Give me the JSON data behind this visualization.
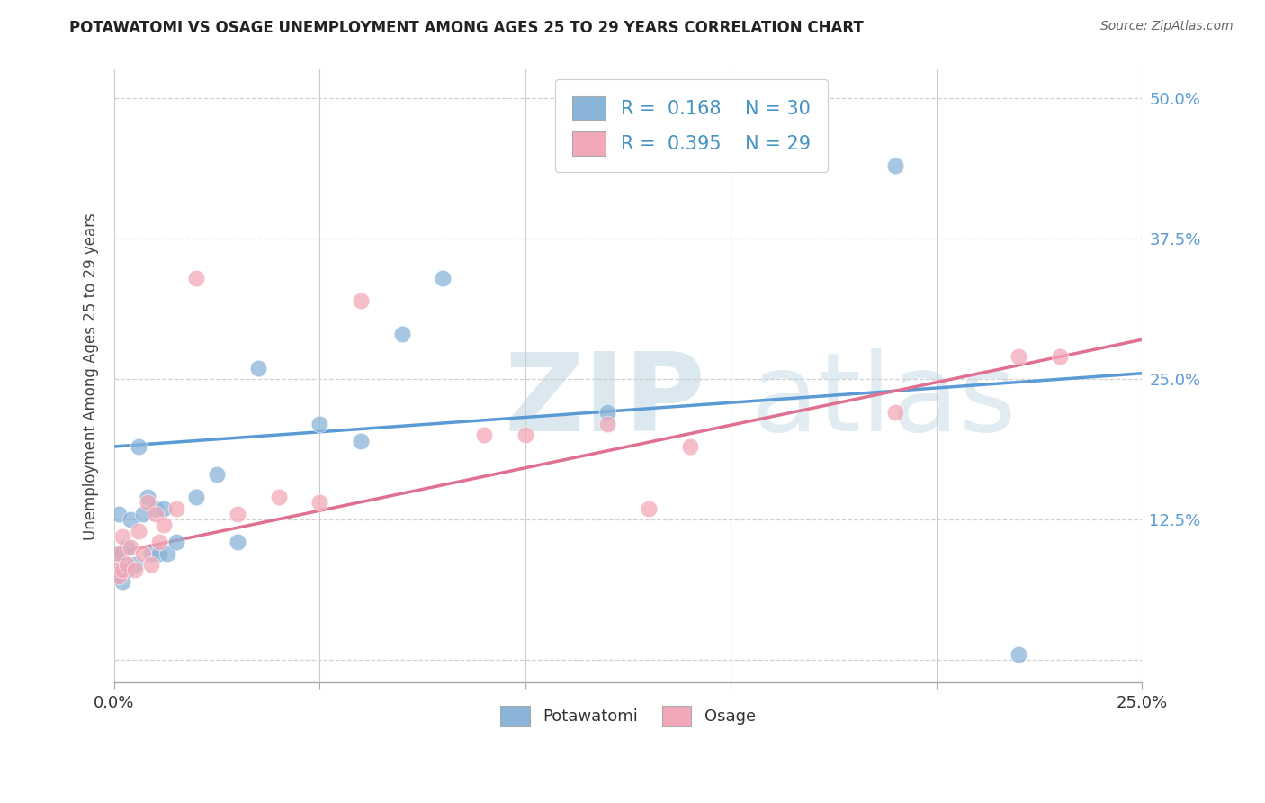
{
  "title": "POTAWATOMI VS OSAGE UNEMPLOYMENT AMONG AGES 25 TO 29 YEARS CORRELATION CHART",
  "source": "Source: ZipAtlas.com",
  "ylabel": "Unemployment Among Ages 25 to 29 years",
  "xlim": [
    0.0,
    0.25
  ],
  "ylim": [
    -0.02,
    0.525
  ],
  "xticks": [
    0.0,
    0.05,
    0.1,
    0.15,
    0.2,
    0.25
  ],
  "xticklabels": [
    "0.0%",
    "",
    "",
    "",
    "",
    "25.0%"
  ],
  "yticks_right": [
    0.0,
    0.125,
    0.25,
    0.375,
    0.5
  ],
  "yticklabels_right": [
    "",
    "12.5%",
    "25.0%",
    "37.5%",
    "50.0%"
  ],
  "legend_R1": "0.168",
  "legend_N1": "30",
  "legend_R2": "0.395",
  "legend_N2": "29",
  "color_blue": "#8ab4d8",
  "color_pink": "#f2a8b8",
  "line_color_blue": "#5b9bd5",
  "line_color_pink": "#e07090",
  "potawatomi_x": [
    0.0,
    0.0,
    0.001,
    0.001,
    0.002,
    0.002,
    0.003,
    0.003,
    0.004,
    0.005,
    0.006,
    0.007,
    0.008,
    0.009,
    0.01,
    0.011,
    0.012,
    0.013,
    0.015,
    0.02,
    0.025,
    0.03,
    0.035,
    0.05,
    0.06,
    0.07,
    0.08,
    0.12,
    0.19,
    0.22
  ],
  "potawatomi_y": [
    0.075,
    0.095,
    0.08,
    0.13,
    0.07,
    0.095,
    0.08,
    0.1,
    0.125,
    0.085,
    0.19,
    0.13,
    0.145,
    0.095,
    0.135,
    0.095,
    0.135,
    0.095,
    0.105,
    0.145,
    0.165,
    0.105,
    0.26,
    0.21,
    0.195,
    0.29,
    0.34,
    0.22,
    0.44,
    0.005
  ],
  "osage_x": [
    0.0,
    0.001,
    0.001,
    0.002,
    0.002,
    0.003,
    0.004,
    0.005,
    0.006,
    0.007,
    0.008,
    0.009,
    0.01,
    0.011,
    0.012,
    0.015,
    0.02,
    0.03,
    0.04,
    0.05,
    0.06,
    0.09,
    0.1,
    0.12,
    0.13,
    0.14,
    0.19,
    0.22,
    0.23
  ],
  "osage_y": [
    0.08,
    0.075,
    0.095,
    0.08,
    0.11,
    0.085,
    0.1,
    0.08,
    0.115,
    0.095,
    0.14,
    0.085,
    0.13,
    0.105,
    0.12,
    0.135,
    0.34,
    0.13,
    0.145,
    0.14,
    0.32,
    0.2,
    0.2,
    0.21,
    0.135,
    0.19,
    0.22,
    0.27,
    0.27
  ],
  "blue_line_x0": 0.0,
  "blue_line_x1": 0.25,
  "blue_line_y0": 0.19,
  "blue_line_y1": 0.255,
  "pink_line_x0": 0.0,
  "pink_line_x1": 0.25,
  "pink_line_y0": 0.095,
  "pink_line_y1": 0.285
}
